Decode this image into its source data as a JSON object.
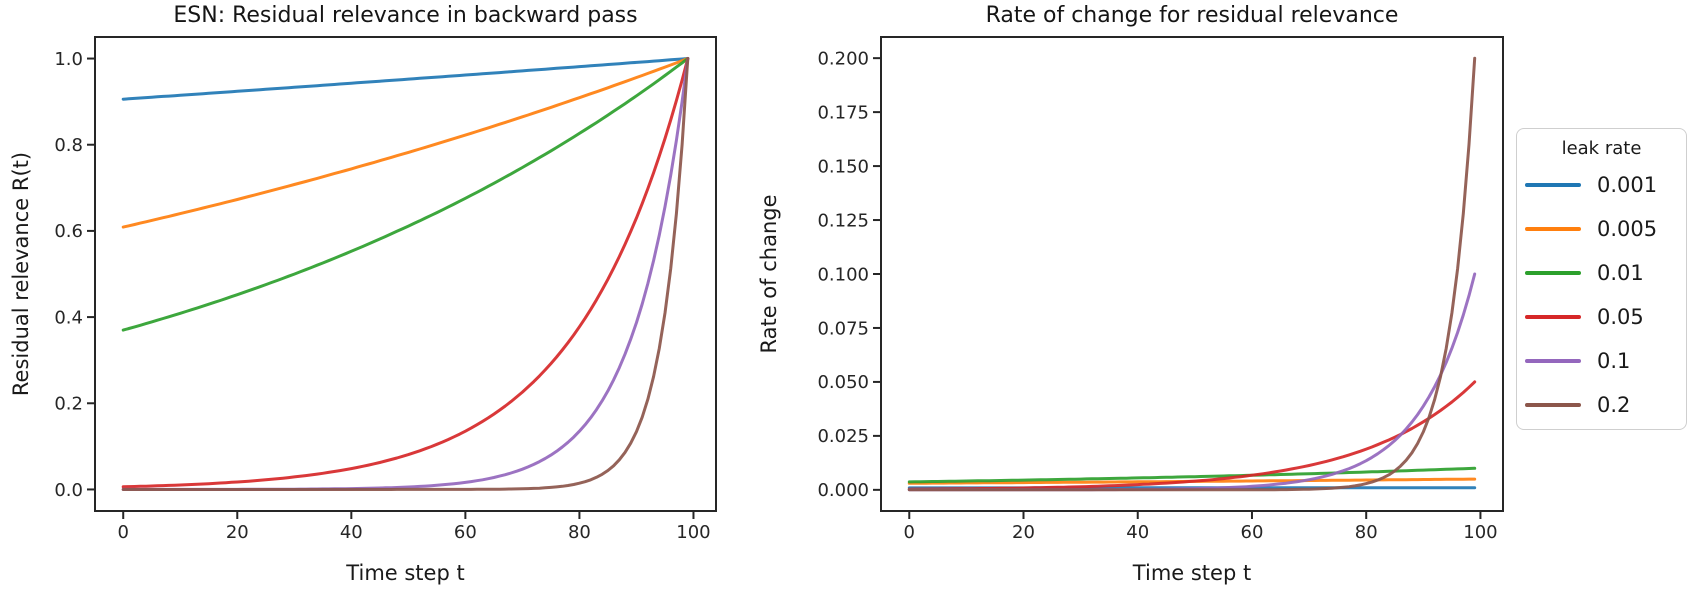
{
  "legend": {
    "title": "leak rate",
    "position": "outside-right-center",
    "entries": [
      {
        "label": "0.001",
        "color": "#1f77b4"
      },
      {
        "label": "0.005",
        "color": "#ff7f0e"
      },
      {
        "label": "0.01",
        "color": "#2ca02c"
      },
      {
        "label": "0.05",
        "color": "#d62728"
      },
      {
        "label": "0.1",
        "color": "#9467bd"
      },
      {
        "label": "0.2",
        "color": "#8c564b"
      }
    ]
  },
  "chart_data": [
    {
      "type": "line",
      "title": "ESN: Residual relevance in backward pass",
      "xlabel": "Time step t",
      "ylabel": "Residual relevance R(t)",
      "xlim": [
        -4.95,
        103.95
      ],
      "ylim": [
        -0.05,
        1.05
      ],
      "xticks": [
        0,
        20,
        40,
        60,
        80,
        100
      ],
      "xtick_labels": [
        "0",
        "20",
        "40",
        "60",
        "80",
        "100"
      ],
      "yticks": [
        0.0,
        0.2,
        0.4,
        0.6,
        0.8,
        1.0
      ],
      "ytick_labels": [
        "0.0",
        "0.2",
        "0.4",
        "0.6",
        "0.8",
        "1.0"
      ],
      "grid": false,
      "x": [
        0,
        5,
        10,
        15,
        20,
        25,
        30,
        35,
        40,
        45,
        50,
        55,
        60,
        65,
        70,
        75,
        80,
        85,
        90,
        95,
        99
      ],
      "series": [
        {
          "name": "0.001",
          "color": "#1f77b4",
          "values": [
            0.9057,
            0.9102,
            0.9148,
            0.9194,
            0.924,
            0.9286,
            0.9333,
            0.938,
            0.9427,
            0.9474,
            0.9522,
            0.9569,
            0.9617,
            0.9665,
            0.9714,
            0.9763,
            0.9812,
            0.9861,
            0.991,
            0.996,
            1.0
          ]
        },
        {
          "name": "0.005",
          "color": "#ff7f0e",
          "values": [
            0.6088,
            0.6243,
            0.6401,
            0.6564,
            0.673,
            0.6901,
            0.7076,
            0.7256,
            0.744,
            0.7629,
            0.7822,
            0.8021,
            0.8224,
            0.8433,
            0.8647,
            0.8867,
            0.9092,
            0.9322,
            0.9559,
            0.9801,
            1.0
          ]
        },
        {
          "name": "0.01",
          "color": "#2ca02c",
          "values": [
            0.3697,
            0.3888,
            0.4088,
            0.4299,
            0.452,
            0.4754,
            0.4998,
            0.5256,
            0.5527,
            0.5812,
            0.6112,
            0.6426,
            0.6757,
            0.7106,
            0.7472,
            0.7857,
            0.8262,
            0.8687,
            0.9135,
            0.9606,
            1.0
          ]
        },
        {
          "name": "0.05",
          "color": "#d62728",
          "values": [
            0.00622,
            0.00804,
            0.0104,
            0.01344,
            0.01737,
            0.02245,
            0.02902,
            0.0375,
            0.04847,
            0.06266,
            0.081,
            0.1047,
            0.1353,
            0.1749,
            0.226,
            0.292,
            0.3774,
            0.4877,
            0.6302,
            0.8145,
            1.0
          ]
        },
        {
          "name": "0.1",
          "color": "#9467bd",
          "values": [
            2.95e-05,
            4.99e-05,
            8.45e-05,
            0.0001433,
            0.0002423,
            0.00041,
            0.000694,
            0.001178,
            0.001994,
            0.003377,
            0.00572,
            0.00969,
            0.01641,
            0.0278,
            0.04709,
            0.07976,
            0.1351,
            0.2288,
            0.3874,
            0.6561,
            1.0
          ]
        },
        {
          "name": "0.2",
          "color": "#8c564b",
          "values": [
            2.5e-10,
            7.7e-10,
            2.4e-09,
            7.2e-09,
            2.2e-08,
            6.7e-08,
            2.05e-07,
            6.3e-07,
            1.92e-06,
            5.85e-06,
            1.79e-05,
            5.44e-05,
            0.000166,
            0.000506,
            0.001548,
            0.00472,
            0.01441,
            0.04397,
            0.1342,
            0.4096,
            1.0
          ]
        }
      ]
    },
    {
      "type": "line",
      "title": "Rate of change for residual relevance",
      "xlabel": "Time step t",
      "ylabel": "Rate of change",
      "xlim": [
        -4.95,
        103.95
      ],
      "ylim": [
        -0.0098,
        0.2098
      ],
      "xticks": [
        0,
        20,
        40,
        60,
        80,
        100
      ],
      "xtick_labels": [
        "0",
        "20",
        "40",
        "60",
        "80",
        "100"
      ],
      "yticks": [
        0.0,
        0.025,
        0.05,
        0.075,
        0.1,
        0.125,
        0.15,
        0.175,
        0.2
      ],
      "ytick_labels": [
        "0.000",
        "0.025",
        "0.050",
        "0.075",
        "0.100",
        "0.125",
        "0.150",
        "0.175",
        "0.200"
      ],
      "grid": false,
      "x": [
        0,
        5,
        10,
        15,
        20,
        25,
        30,
        35,
        40,
        45,
        50,
        55,
        60,
        65,
        70,
        75,
        80,
        85,
        90,
        95,
        99
      ],
      "series": [
        {
          "name": "0.001",
          "color": "#1f77b4",
          "values": [
            0.0009057,
            0.0009102,
            0.0009148,
            0.0009194,
            0.000924,
            0.0009286,
            0.0009333,
            0.000938,
            0.0009427,
            0.0009474,
            0.0009522,
            0.0009569,
            0.0009617,
            0.0009665,
            0.0009714,
            0.0009763,
            0.0009812,
            0.0009861,
            0.000991,
            0.000996,
            0.001
          ]
        },
        {
          "name": "0.005",
          "color": "#ff7f0e",
          "values": [
            0.003044,
            0.003122,
            0.0032,
            0.003282,
            0.003365,
            0.003451,
            0.003538,
            0.003628,
            0.00372,
            0.003814,
            0.003911,
            0.004011,
            0.004112,
            0.004216,
            0.004323,
            0.004433,
            0.004546,
            0.004661,
            0.004779,
            0.004901,
            0.005
          ]
        },
        {
          "name": "0.01",
          "color": "#2ca02c",
          "values": [
            0.003697,
            0.003888,
            0.004088,
            0.004299,
            0.00452,
            0.004754,
            0.004998,
            0.005256,
            0.005527,
            0.005812,
            0.006112,
            0.006426,
            0.006757,
            0.007106,
            0.007472,
            0.007857,
            0.008262,
            0.008687,
            0.009135,
            0.009606,
            0.01
          ]
        },
        {
          "name": "0.05",
          "color": "#d62728",
          "values": [
            0.000311,
            0.000402,
            0.00052,
            0.000672,
            0.000868,
            0.001122,
            0.001451,
            0.001875,
            0.002423,
            0.003133,
            0.00405,
            0.005233,
            0.006763,
            0.008743,
            0.0113,
            0.0146,
            0.01887,
            0.02438,
            0.03151,
            0.04072,
            0.05
          ]
        },
        {
          "name": "0.1",
          "color": "#9467bd",
          "values": [
            2.95e-06,
            4.99e-06,
            8.45e-06,
            1.433e-05,
            2.423e-05,
            4.1e-05,
            6.94e-05,
            0.0001178,
            0.0001994,
            0.0003377,
            0.000572,
            0.000969,
            0.001641,
            0.00278,
            0.004709,
            0.007976,
            0.01351,
            0.02288,
            0.03874,
            0.06561,
            0.1
          ]
        },
        {
          "name": "0.2",
          "color": "#8c564b",
          "values": [
            5e-11,
            1.5e-10,
            4.8e-10,
            1.4e-09,
            4.4e-09,
            1.3e-08,
            4.1e-08,
            1.3e-07,
            3.8e-07,
            1.17e-06,
            3.58e-06,
            1.09e-05,
            3.32e-05,
            0.000101,
            0.00031,
            0.000944,
            0.002882,
            0.008794,
            0.02684,
            0.08192,
            0.2
          ]
        }
      ]
    }
  ]
}
